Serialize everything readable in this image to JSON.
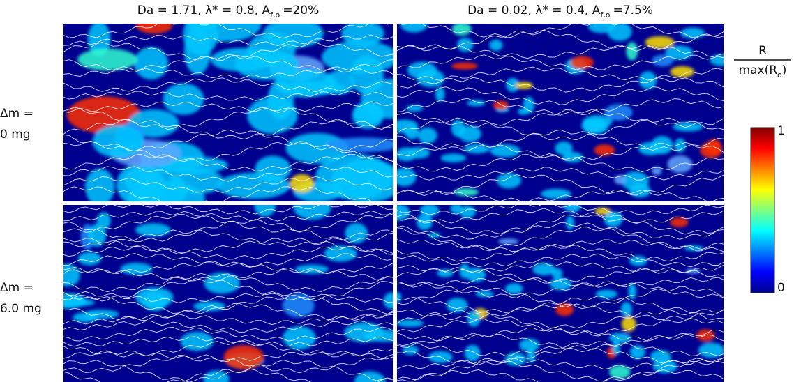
{
  "columns": [
    {
      "title": {
        "main": "Da = 1.71, λ* = 0.8, A",
        "sub": "f,o",
        "rest": "=20%"
      }
    },
    {
      "title": {
        "main": "Da = 0.02, λ* = 0.4, A",
        "sub": "f,o",
        "rest": "=7.5%"
      }
    }
  ],
  "rows": [
    {
      "label": [
        "Δm =",
        "0 mg"
      ]
    },
    {
      "label": [
        "Δm =",
        "6.0 mg"
      ]
    }
  ],
  "colorbar": {
    "numerator": "R",
    "denominator": {
      "main": "max(R",
      "sub": "o",
      "rest": ")"
    },
    "ticks": [
      1,
      0
    ],
    "lim": [
      0,
      1
    ]
  }
}
